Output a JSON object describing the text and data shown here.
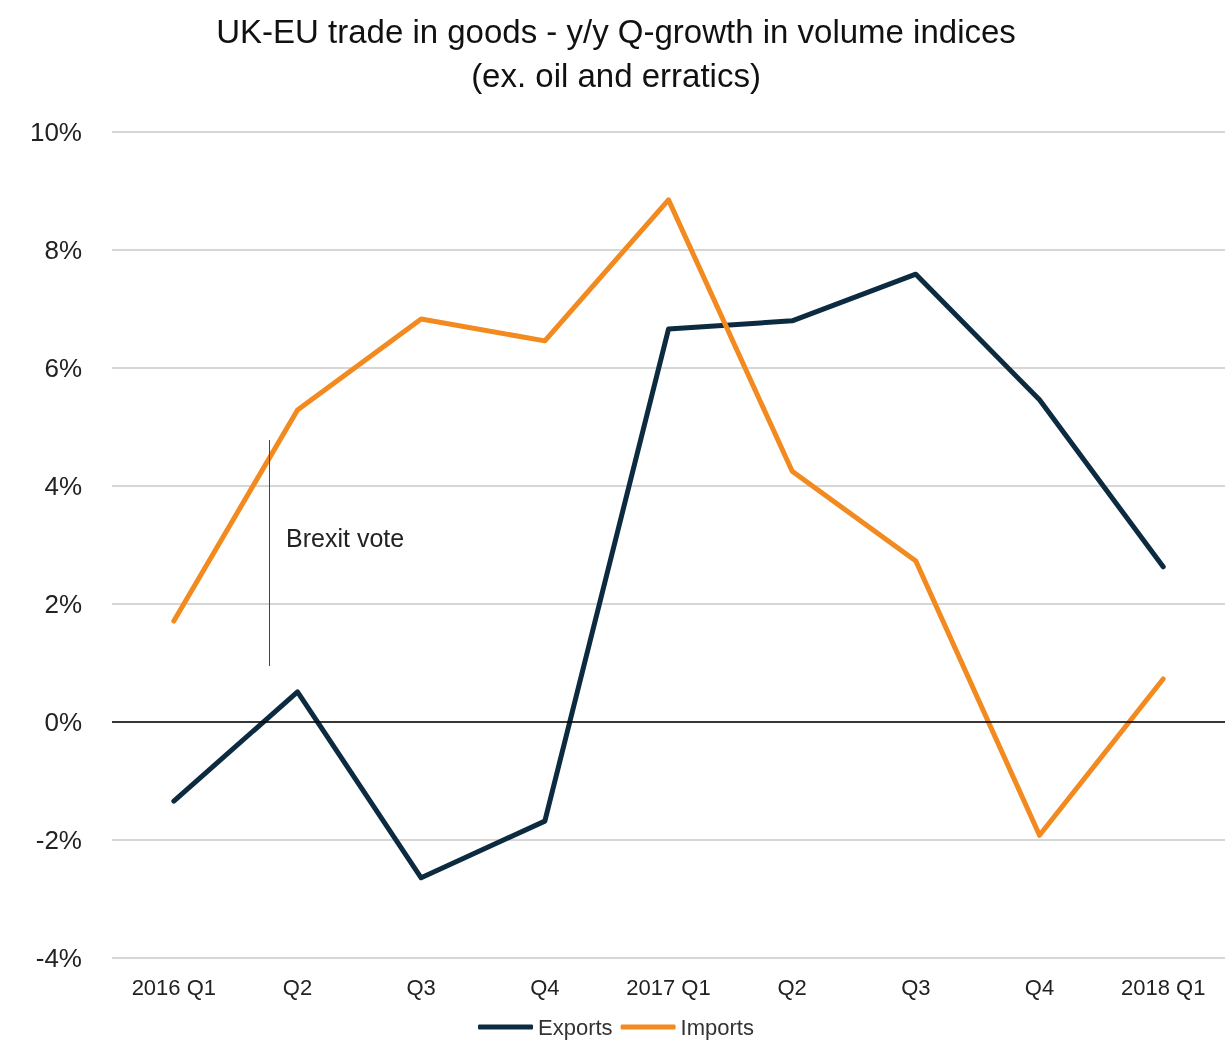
{
  "chart_data": {
    "type": "line",
    "title": "UK-EU trade in goods - y/y Q-growth in volume indices\n(ex. oil and erratics)",
    "categories": [
      "2016 Q1",
      "Q2",
      "Q3",
      "Q4",
      "2017 Q1",
      "Q2",
      "Q3",
      "Q4",
      "2018 Q1"
    ],
    "series": [
      {
        "name": "Exports",
        "color": "#0d2b40",
        "values": [
          -1.34,
          0.51,
          -2.64,
          -1.68,
          6.66,
          6.8,
          7.59,
          5.46,
          2.63
        ]
      },
      {
        "name": "Imports",
        "color": "#f28a1f",
        "values": [
          1.71,
          5.29,
          6.83,
          6.46,
          8.85,
          4.25,
          2.73,
          -1.92,
          0.73
        ]
      }
    ],
    "ylim": [
      -4,
      10
    ],
    "yticks": [
      {
        "value": -4,
        "label": "-4%"
      },
      {
        "value": -2,
        "label": "-2%"
      },
      {
        "value": 0,
        "label": "0%"
      },
      {
        "value": 2,
        "label": "2%"
      },
      {
        "value": 4,
        "label": "4%"
      },
      {
        "value": 6,
        "label": "6%"
      },
      {
        "value": 8,
        "label": "8%"
      },
      {
        "value": 10,
        "label": "10%"
      }
    ],
    "grid": "y",
    "legend": "bottom",
    "marker": "none",
    "line_style": "solid",
    "ref_lines": [
      {
        "axis": "y",
        "value": 0,
        "color": "#000000"
      }
    ],
    "annotations": [
      "Brexit vote"
    ]
  }
}
